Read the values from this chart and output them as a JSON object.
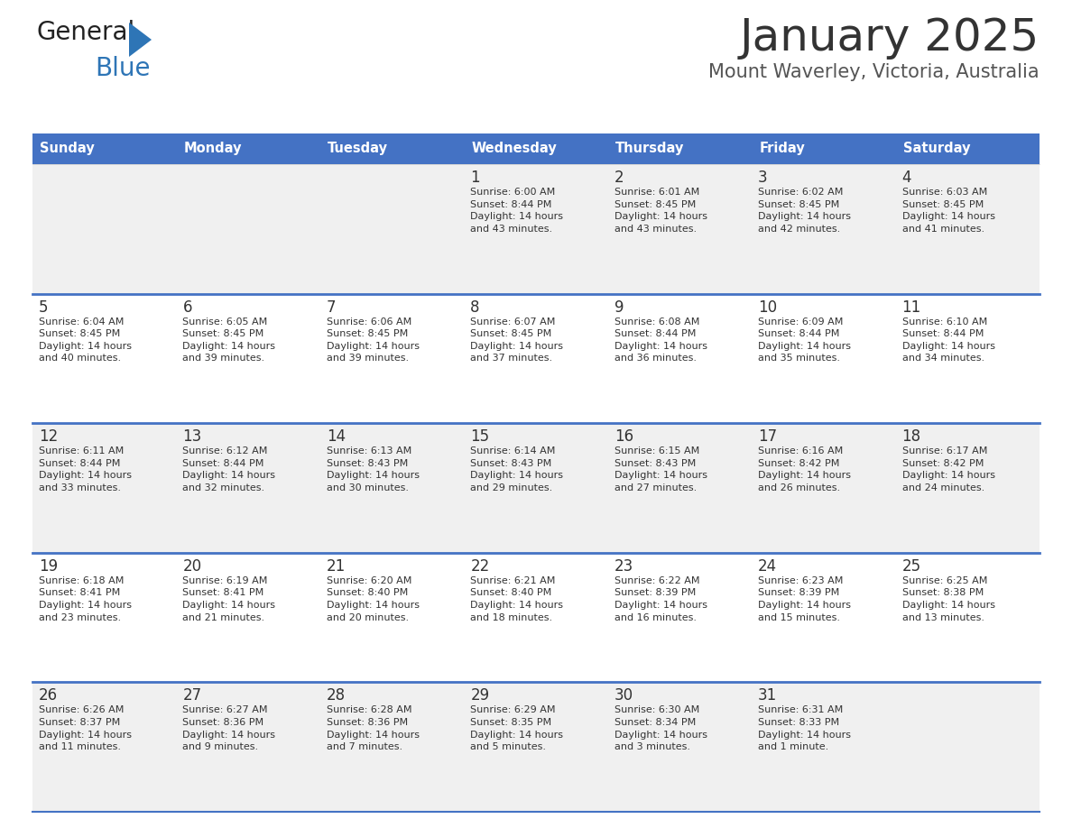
{
  "title": "January 2025",
  "subtitle": "Mount Waverley, Victoria, Australia",
  "days_of_week": [
    "Sunday",
    "Monday",
    "Tuesday",
    "Wednesday",
    "Thursday",
    "Friday",
    "Saturday"
  ],
  "header_bg": "#4472C4",
  "header_text": "#FFFFFF",
  "row_bg_odd": "#F0F0F0",
  "row_bg_even": "#FFFFFF",
  "row_separator": "#4472C4",
  "cell_text": "#333333",
  "title_color": "#333333",
  "subtitle_color": "#555555",
  "calendar": [
    [
      {
        "day": null,
        "info": null
      },
      {
        "day": null,
        "info": null
      },
      {
        "day": null,
        "info": null
      },
      {
        "day": "1",
        "info": "Sunrise: 6:00 AM\nSunset: 8:44 PM\nDaylight: 14 hours\nand 43 minutes."
      },
      {
        "day": "2",
        "info": "Sunrise: 6:01 AM\nSunset: 8:45 PM\nDaylight: 14 hours\nand 43 minutes."
      },
      {
        "day": "3",
        "info": "Sunrise: 6:02 AM\nSunset: 8:45 PM\nDaylight: 14 hours\nand 42 minutes."
      },
      {
        "day": "4",
        "info": "Sunrise: 6:03 AM\nSunset: 8:45 PM\nDaylight: 14 hours\nand 41 minutes."
      }
    ],
    [
      {
        "day": "5",
        "info": "Sunrise: 6:04 AM\nSunset: 8:45 PM\nDaylight: 14 hours\nand 40 minutes."
      },
      {
        "day": "6",
        "info": "Sunrise: 6:05 AM\nSunset: 8:45 PM\nDaylight: 14 hours\nand 39 minutes."
      },
      {
        "day": "7",
        "info": "Sunrise: 6:06 AM\nSunset: 8:45 PM\nDaylight: 14 hours\nand 39 minutes."
      },
      {
        "day": "8",
        "info": "Sunrise: 6:07 AM\nSunset: 8:45 PM\nDaylight: 14 hours\nand 37 minutes."
      },
      {
        "day": "9",
        "info": "Sunrise: 6:08 AM\nSunset: 8:44 PM\nDaylight: 14 hours\nand 36 minutes."
      },
      {
        "day": "10",
        "info": "Sunrise: 6:09 AM\nSunset: 8:44 PM\nDaylight: 14 hours\nand 35 minutes."
      },
      {
        "day": "11",
        "info": "Sunrise: 6:10 AM\nSunset: 8:44 PM\nDaylight: 14 hours\nand 34 minutes."
      }
    ],
    [
      {
        "day": "12",
        "info": "Sunrise: 6:11 AM\nSunset: 8:44 PM\nDaylight: 14 hours\nand 33 minutes."
      },
      {
        "day": "13",
        "info": "Sunrise: 6:12 AM\nSunset: 8:44 PM\nDaylight: 14 hours\nand 32 minutes."
      },
      {
        "day": "14",
        "info": "Sunrise: 6:13 AM\nSunset: 8:43 PM\nDaylight: 14 hours\nand 30 minutes."
      },
      {
        "day": "15",
        "info": "Sunrise: 6:14 AM\nSunset: 8:43 PM\nDaylight: 14 hours\nand 29 minutes."
      },
      {
        "day": "16",
        "info": "Sunrise: 6:15 AM\nSunset: 8:43 PM\nDaylight: 14 hours\nand 27 minutes."
      },
      {
        "day": "17",
        "info": "Sunrise: 6:16 AM\nSunset: 8:42 PM\nDaylight: 14 hours\nand 26 minutes."
      },
      {
        "day": "18",
        "info": "Sunrise: 6:17 AM\nSunset: 8:42 PM\nDaylight: 14 hours\nand 24 minutes."
      }
    ],
    [
      {
        "day": "19",
        "info": "Sunrise: 6:18 AM\nSunset: 8:41 PM\nDaylight: 14 hours\nand 23 minutes."
      },
      {
        "day": "20",
        "info": "Sunrise: 6:19 AM\nSunset: 8:41 PM\nDaylight: 14 hours\nand 21 minutes."
      },
      {
        "day": "21",
        "info": "Sunrise: 6:20 AM\nSunset: 8:40 PM\nDaylight: 14 hours\nand 20 minutes."
      },
      {
        "day": "22",
        "info": "Sunrise: 6:21 AM\nSunset: 8:40 PM\nDaylight: 14 hours\nand 18 minutes."
      },
      {
        "day": "23",
        "info": "Sunrise: 6:22 AM\nSunset: 8:39 PM\nDaylight: 14 hours\nand 16 minutes."
      },
      {
        "day": "24",
        "info": "Sunrise: 6:23 AM\nSunset: 8:39 PM\nDaylight: 14 hours\nand 15 minutes."
      },
      {
        "day": "25",
        "info": "Sunrise: 6:25 AM\nSunset: 8:38 PM\nDaylight: 14 hours\nand 13 minutes."
      }
    ],
    [
      {
        "day": "26",
        "info": "Sunrise: 6:26 AM\nSunset: 8:37 PM\nDaylight: 14 hours\nand 11 minutes."
      },
      {
        "day": "27",
        "info": "Sunrise: 6:27 AM\nSunset: 8:36 PM\nDaylight: 14 hours\nand 9 minutes."
      },
      {
        "day": "28",
        "info": "Sunrise: 6:28 AM\nSunset: 8:36 PM\nDaylight: 14 hours\nand 7 minutes."
      },
      {
        "day": "29",
        "info": "Sunrise: 6:29 AM\nSunset: 8:35 PM\nDaylight: 14 hours\nand 5 minutes."
      },
      {
        "day": "30",
        "info": "Sunrise: 6:30 AM\nSunset: 8:34 PM\nDaylight: 14 hours\nand 3 minutes."
      },
      {
        "day": "31",
        "info": "Sunrise: 6:31 AM\nSunset: 8:33 PM\nDaylight: 14 hours\nand 1 minute."
      },
      {
        "day": null,
        "info": null
      }
    ]
  ],
  "logo_general_color": "#222222",
  "logo_blue_color": "#2E75B6",
  "logo_triangle_color": "#2E75B6"
}
